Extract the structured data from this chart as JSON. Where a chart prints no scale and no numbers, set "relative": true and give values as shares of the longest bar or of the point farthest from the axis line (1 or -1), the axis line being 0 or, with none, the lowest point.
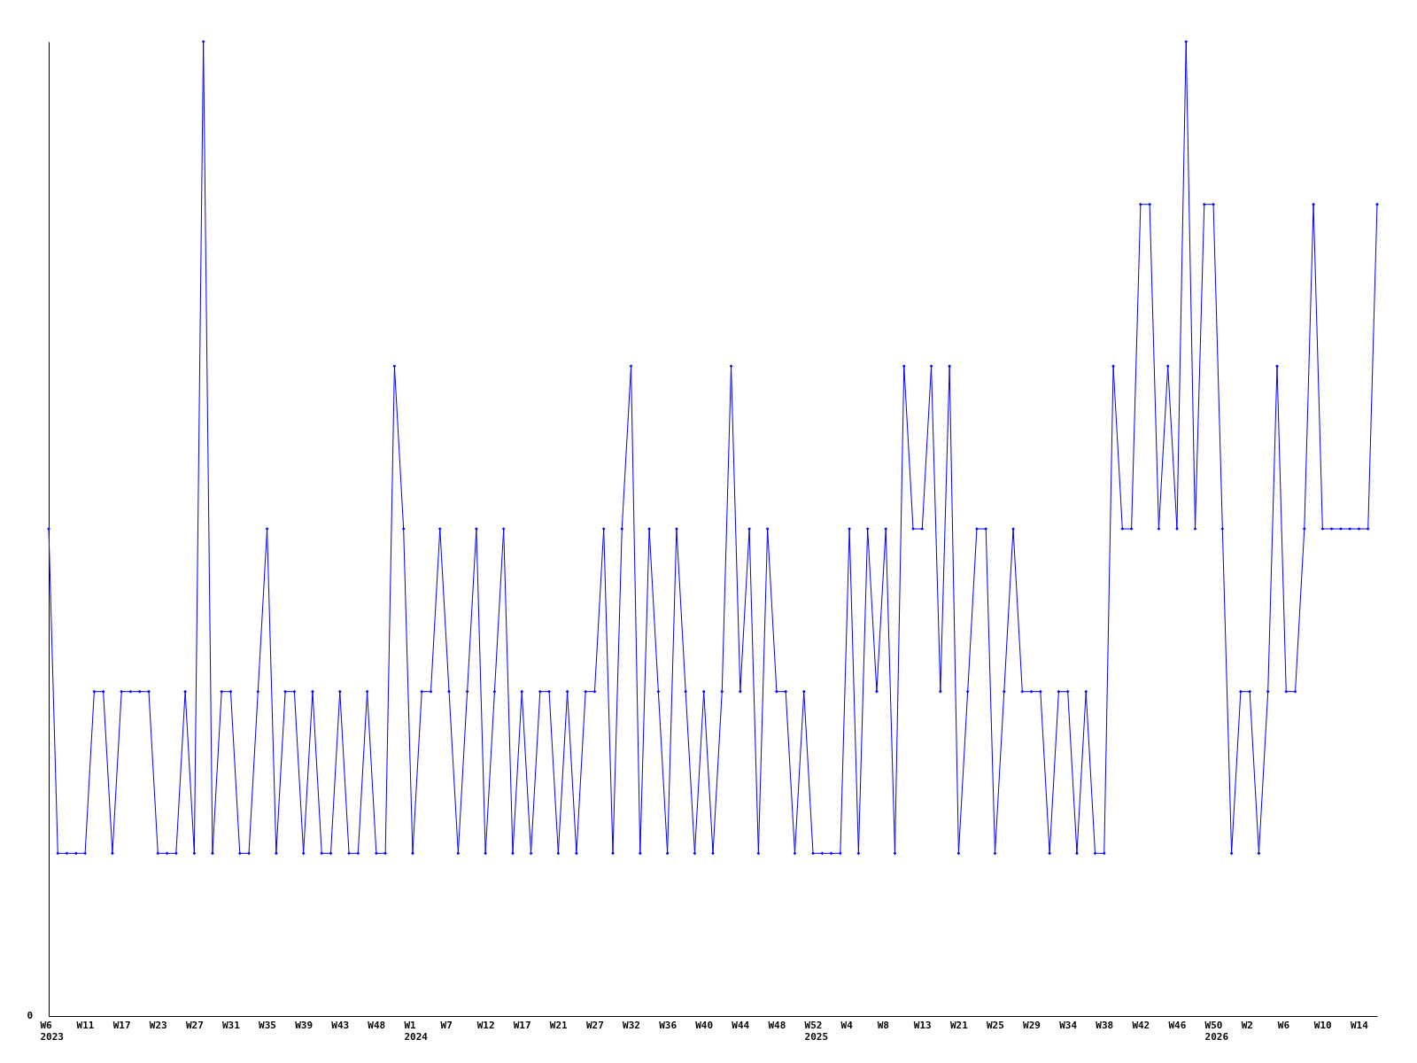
{
  "chart_data": {
    "type": "line",
    "relative": true,
    "annotations": [
      "0"
    ],
    "marker": "diamond",
    "line_style": "solid",
    "grid": false,
    "categories": [
      "W6\n2023",
      null,
      null,
      null,
      "W11",
      null,
      null,
      null,
      "W17",
      null,
      null,
      null,
      "W23",
      null,
      null,
      null,
      "W27",
      null,
      null,
      null,
      "W31",
      null,
      null,
      null,
      "W35",
      null,
      null,
      null,
      "W39",
      null,
      null,
      null,
      "W43",
      null,
      null,
      null,
      "W48",
      null,
      null,
      null,
      "W1\n2024",
      null,
      null,
      null,
      "W7",
      null,
      null,
      null,
      "W12",
      null,
      null,
      null,
      "W17",
      null,
      null,
      null,
      "W21",
      null,
      null,
      null,
      "W27",
      null,
      null,
      null,
      "W32",
      null,
      null,
      null,
      "W36",
      null,
      null,
      null,
      "W40",
      null,
      null,
      null,
      "W44",
      null,
      null,
      null,
      "W48",
      null,
      null,
      null,
      "W52\n2025",
      null,
      null,
      null,
      "W4",
      null,
      null,
      null,
      "W8",
      null,
      null,
      null,
      "W13",
      null,
      null,
      null,
      "W21",
      null,
      null,
      null,
      "W25",
      null,
      null,
      null,
      "W29",
      null,
      null,
      null,
      "W34",
      null,
      null,
      null,
      "W38",
      null,
      null,
      null,
      "W42",
      null,
      null,
      null,
      "W46",
      null,
      null,
      null,
      "W50\n2026",
      null,
      null,
      null,
      "W2",
      null,
      null,
      null,
      "W6",
      null,
      null,
      null,
      "W10",
      null,
      null,
      null,
      "W14",
      null,
      null
    ],
    "series": [
      {
        "color": "#0000ff",
        "values": [
          0.5,
          0.167,
          0.167,
          0.167,
          0.167,
          0.333,
          0.333,
          0.167,
          0.333,
          0.333,
          0.333,
          0.333,
          0.167,
          0.167,
          0.167,
          0.333,
          0.167,
          1,
          0.167,
          0.333,
          0.333,
          0.167,
          0.167,
          0.333,
          0.5,
          0.167,
          0.333,
          0.333,
          0.167,
          0.333,
          0.167,
          0.167,
          0.333,
          0.167,
          0.167,
          0.333,
          0.167,
          0.167,
          0.667,
          0.5,
          0.167,
          0.333,
          0.333,
          0.5,
          0.333,
          0.167,
          0.333,
          0.5,
          0.167,
          0.333,
          0.5,
          0.167,
          0.333,
          0.167,
          0.333,
          0.333,
          0.167,
          0.333,
          0.167,
          0.333,
          0.333,
          0.5,
          0.167,
          0.5,
          0.667,
          0.167,
          0.5,
          0.333,
          0.167,
          0.5,
          0.333,
          0.167,
          0.333,
          0.167,
          0.333,
          0.667,
          0.333,
          0.5,
          0.167,
          0.5,
          0.333,
          0.333,
          0.167,
          0.333,
          0.167,
          0.167,
          0.167,
          0.167,
          0.5,
          0.167,
          0.5,
          0.333,
          0.5,
          0.167,
          0.667,
          0.5,
          0.5,
          0.667,
          0.333,
          0.667,
          0.167,
          0.333,
          0.5,
          0.5,
          0.167,
          0.333,
          0.5,
          0.333,
          0.333,
          0.333,
          0.167,
          0.333,
          0.333,
          0.167,
          0.333,
          0.167,
          0.167,
          0.667,
          0.5,
          0.5,
          0.833,
          0.833,
          0.5,
          0.667,
          0.5,
          1,
          0.5,
          0.833,
          0.833,
          0.5,
          0.167,
          0.333,
          0.333,
          0.167,
          0.333,
          0.667,
          0.333,
          0.333,
          0.5,
          0.833,
          0.5,
          0.5,
          0.5,
          0.5,
          0.5,
          0.5,
          0.833
        ]
      }
    ]
  }
}
